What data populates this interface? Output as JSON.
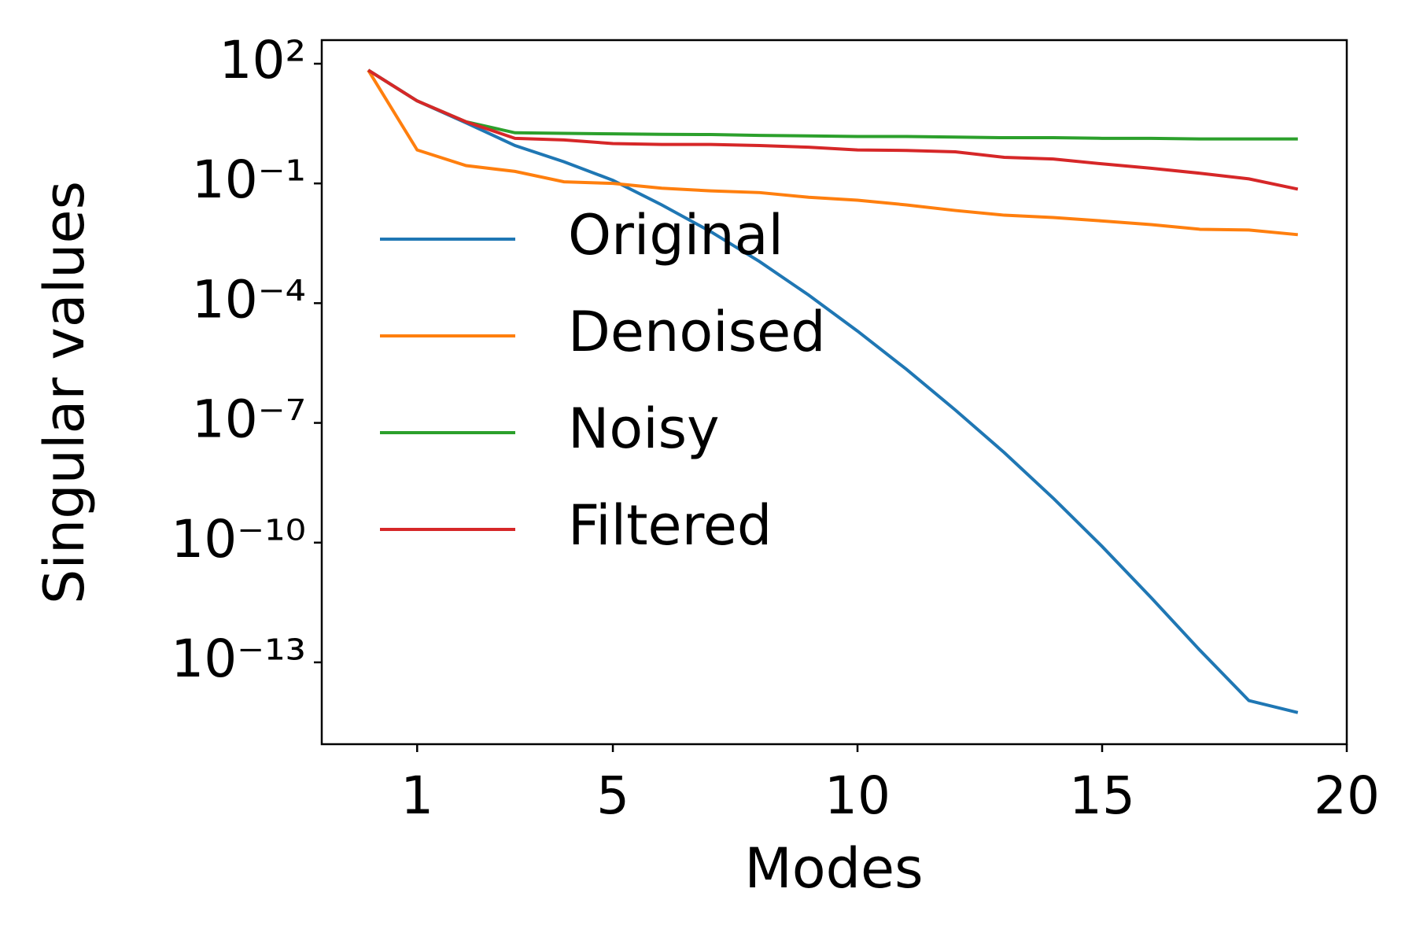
{
  "chart_data": {
    "type": "line",
    "xlabel": "Modes",
    "ylabel": "Singular values",
    "x": [
      0,
      1,
      2,
      3,
      4,
      5,
      6,
      7,
      8,
      9,
      10,
      11,
      12,
      13,
      14,
      15,
      16,
      17,
      18,
      19
    ],
    "series": [
      {
        "name": "Original",
        "color": "#1f77b4",
        "values": [
          69,
          11.7,
          3.3,
          0.89,
          0.35,
          0.12,
          0.029,
          0.0062,
          0.0011,
          0.00016,
          2e-05,
          2.2e-06,
          2.1e-07,
          1.8e-08,
          1.3e-09,
          8e-11,
          4.2e-12,
          2e-13,
          1.1e-14,
          5.5e-15
        ]
      },
      {
        "name": "Denoised",
        "color": "#ff7f0e",
        "values": [
          69,
          0.69,
          0.28,
          0.2,
          0.11,
          0.1,
          0.076,
          0.065,
          0.059,
          0.045,
          0.038,
          0.029,
          0.021,
          0.016,
          0.014,
          0.0115,
          0.0093,
          0.0071,
          0.0068,
          0.0052
        ]
      },
      {
        "name": "Noisy",
        "color": "#2ca02c",
        "values": [
          69,
          11.7,
          3.5,
          1.86,
          1.8,
          1.75,
          1.7,
          1.68,
          1.6,
          1.55,
          1.5,
          1.5,
          1.45,
          1.4,
          1.4,
          1.35,
          1.35,
          1.3,
          1.3,
          1.3
        ]
      },
      {
        "name": "Filtered",
        "color": "#d62728",
        "values": [
          69,
          11.7,
          3.5,
          1.35,
          1.23,
          1.0,
          0.95,
          0.95,
          0.89,
          0.81,
          0.69,
          0.67,
          0.62,
          0.45,
          0.41,
          0.31,
          0.24,
          0.18,
          0.13,
          0.072
        ]
      }
    ],
    "xlim": [
      -0.95,
      20
    ],
    "xticks": [
      1,
      5,
      10,
      15,
      20
    ],
    "ylim": [
      8.9e-16,
      390
    ],
    "yscale": "log",
    "yticks": [
      {
        "value": 100,
        "label": "10²"
      },
      {
        "value": 0.1,
        "label": "10⁻¹"
      },
      {
        "value": 0.0001,
        "label": "10⁻⁴"
      },
      {
        "value": 1e-07,
        "label": "10⁻⁷"
      },
      {
        "value": 1e-10,
        "label": "10⁻¹⁰"
      },
      {
        "value": 1e-13,
        "label": "10⁻¹³"
      }
    ],
    "grid": false,
    "legend_loc": "center left"
  }
}
